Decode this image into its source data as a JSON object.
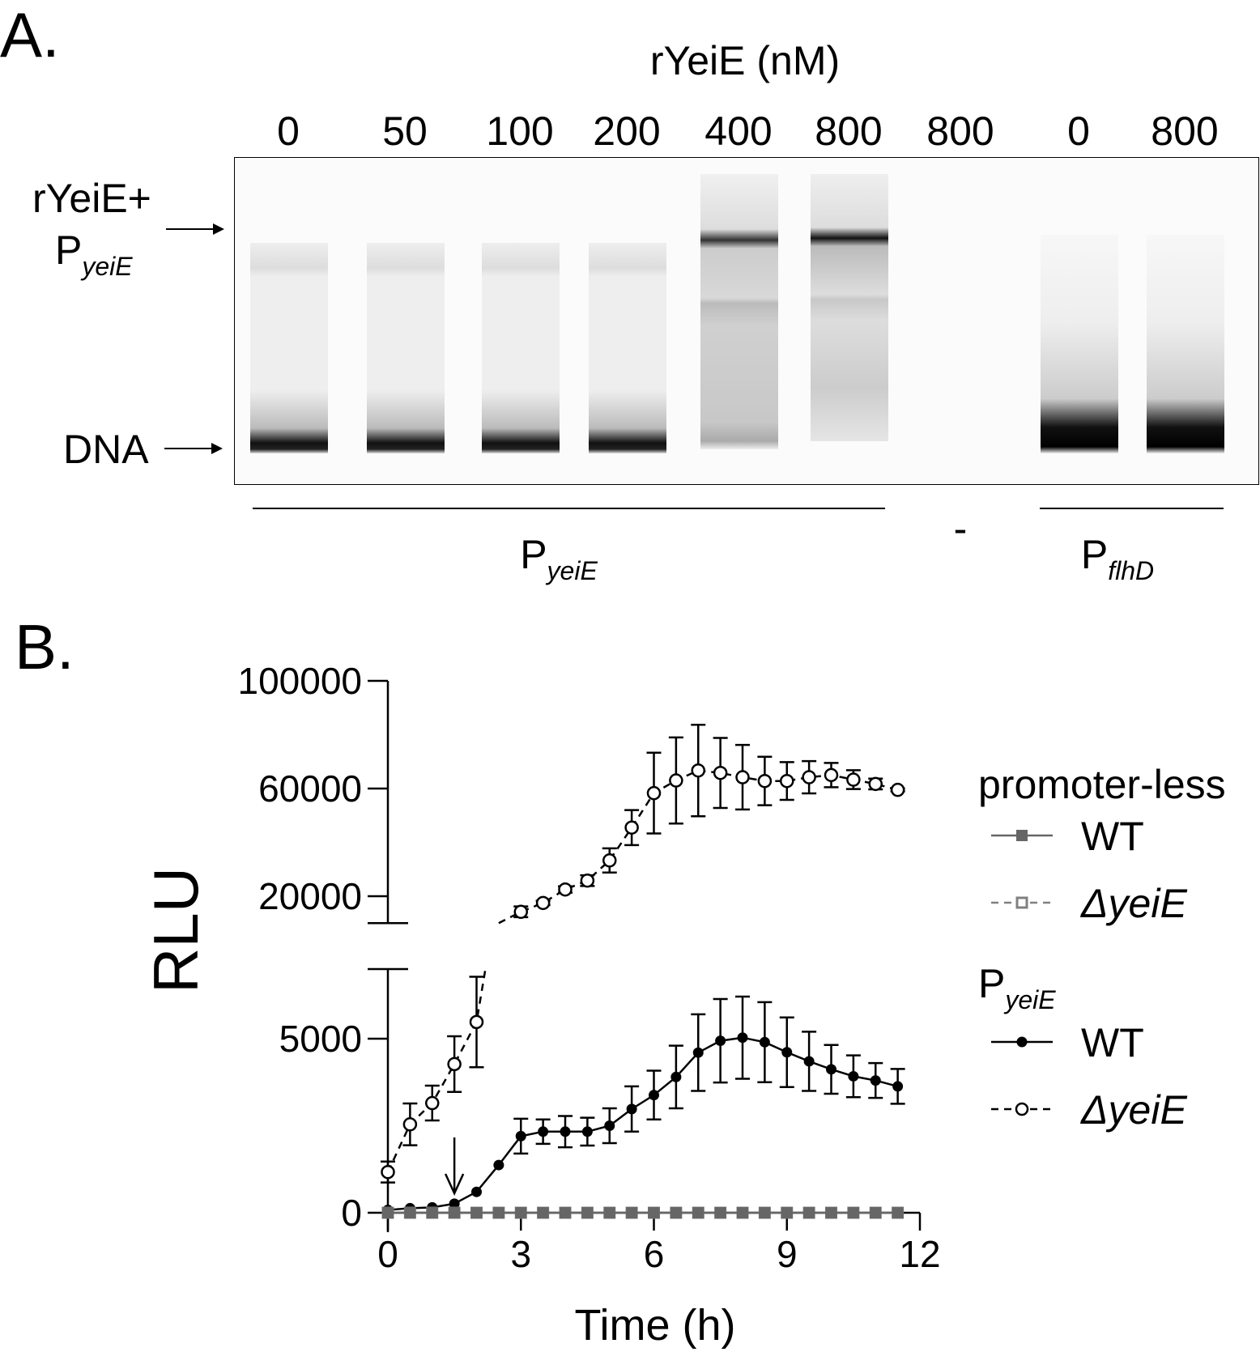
{
  "panel_a": {
    "label": "A.",
    "title": "rYeiE (nM)",
    "lanes": [
      "0",
      "50",
      "100",
      "200",
      "400",
      "800",
      "800",
      "0",
      "800"
    ],
    "complex_label": "rYeiE+",
    "complex_label_p": "P",
    "complex_label_sub": "yeiE",
    "dna_label": "DNA",
    "group1_p": "P",
    "group1_sub": "yeiE",
    "group2": "-",
    "group3_p": "P",
    "group3_sub": "flhD"
  },
  "panel_b": {
    "label": "B."
  },
  "chart_data": {
    "type": "line",
    "xlabel": "Time (h)",
    "ylabel": "RLU",
    "xlim": [
      0,
      12
    ],
    "xticks": [
      "0",
      "3",
      "6",
      "9",
      "12"
    ],
    "y_axis_break": {
      "lower": [
        0,
        7000
      ],
      "upper": [
        10000,
        100000
      ]
    },
    "yticks_lower": [
      "0",
      "5000"
    ],
    "yticks_upper": [
      "20000",
      "60000",
      "100000"
    ],
    "annotation": "arrow at 1.5 h",
    "legend_groups": [
      {
        "title": "promoter-less",
        "title_sub": "",
        "entries": [
          "WT",
          "ΔyeiE"
        ]
      },
      {
        "title": "P",
        "title_sub": "yeiE",
        "entries": [
          "WT",
          "ΔyeiE"
        ]
      }
    ],
    "x": [
      0,
      0.5,
      1,
      1.5,
      2,
      2.5,
      3,
      3.5,
      4,
      4.5,
      5,
      5.5,
      6,
      6.5,
      7,
      7.5,
      8,
      8.5,
      9,
      9.5,
      10,
      10.5,
      11,
      11.5
    ],
    "series": [
      {
        "name": "promoter-less WT",
        "color": "#666666",
        "style": "solid",
        "marker": "filled-square",
        "values": [
          0,
          0,
          0,
          0,
          0,
          0,
          0,
          0,
          0,
          0,
          0,
          0,
          0,
          0,
          0,
          0,
          0,
          0,
          0,
          0,
          0,
          0,
          0,
          0
        ]
      },
      {
        "name": "promoter-less ΔyeiE",
        "color": "#808080",
        "style": "dashed",
        "marker": "open-square",
        "values": [
          0,
          0,
          0,
          0,
          0,
          0,
          0,
          0,
          0,
          0,
          0,
          0,
          0,
          0,
          0,
          0,
          0,
          0,
          0,
          0,
          0,
          0,
          0,
          0
        ]
      },
      {
        "name": "PyeiE WT",
        "color": "#000000",
        "style": "solid",
        "marker": "filled-circle",
        "values": [
          80,
          130,
          155,
          260,
          600,
          1370,
          2200,
          2330,
          2330,
          2330,
          2500,
          2980,
          3380,
          3900,
          4600,
          4940,
          5030,
          4900,
          4610,
          4350,
          4120,
          3920,
          3800,
          3630
        ],
        "errors": [
          0,
          0,
          0,
          0,
          0,
          0,
          500,
          350,
          450,
          400,
          500,
          650,
          700,
          900,
          1100,
          1200,
          1180,
          1150,
          1000,
          850,
          700,
          600,
          500,
          500
        ]
      },
      {
        "name": "PyeiE ΔyeiE",
        "color": "#000000",
        "style": "dashed",
        "marker": "open-circle",
        "values": [
          1170,
          2540,
          3150,
          4270,
          5480,
          null,
          14200,
          17500,
          22500,
          25800,
          33300,
          45500,
          58300,
          63000,
          66700,
          65800,
          64200,
          62800,
          62800,
          64200,
          65000,
          63300,
          61700,
          59500
        ],
        "errors": [
          300,
          600,
          500,
          800,
          1300,
          null,
          2000,
          800,
          1200,
          2000,
          4500,
          6500,
          15000,
          16000,
          17000,
          13000,
          12000,
          9000,
          7000,
          6000,
          4500,
          3500,
          2000,
          500
        ]
      }
    ]
  }
}
